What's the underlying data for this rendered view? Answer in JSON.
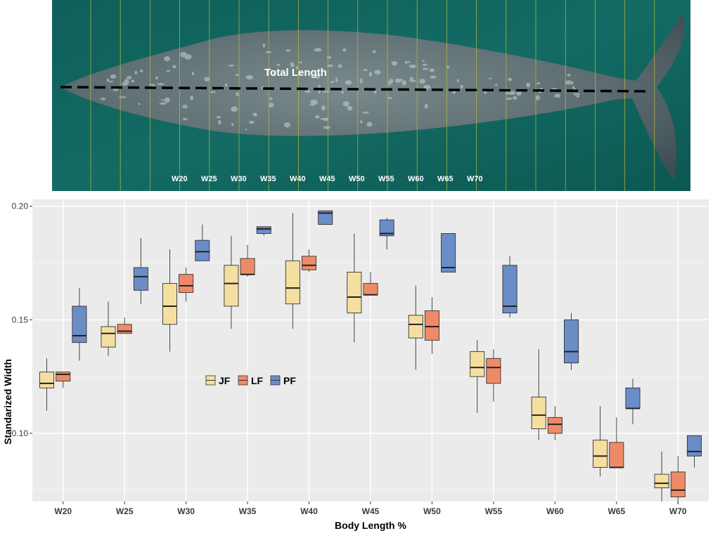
{
  "photo": {
    "title": "Total Length",
    "labels": [
      "W20",
      "W25",
      "W30",
      "W35",
      "W40",
      "W45",
      "W50",
      "W55",
      "W60",
      "W65",
      "W70"
    ]
  },
  "chart_data": {
    "type": "box",
    "xlabel": "Body Length %",
    "ylabel": "Standarized Width",
    "categories": [
      "W20",
      "W25",
      "W30",
      "W35",
      "W40",
      "W45",
      "W50",
      "W55",
      "W60",
      "W65",
      "W70"
    ],
    "ylim": [
      0.07,
      0.203
    ],
    "yticks": [
      "0.10",
      "0.15",
      "0.20"
    ],
    "grid": true,
    "legend_position": "inside-left",
    "series": [
      {
        "name": "JF",
        "color": "#F5DFA0",
        "boxes": [
          {
            "min": 0.11,
            "q1": 0.12,
            "median": 0.122,
            "q3": 0.127,
            "max": 0.133
          },
          {
            "min": 0.134,
            "q1": 0.138,
            "median": 0.144,
            "q3": 0.147,
            "max": 0.158
          },
          {
            "min": 0.136,
            "q1": 0.148,
            "median": 0.156,
            "q3": 0.166,
            "max": 0.181
          },
          {
            "min": 0.146,
            "q1": 0.156,
            "median": 0.166,
            "q3": 0.174,
            "max": 0.187
          },
          {
            "min": 0.146,
            "q1": 0.157,
            "median": 0.164,
            "q3": 0.176,
            "max": 0.197
          },
          {
            "min": 0.14,
            "q1": 0.153,
            "median": 0.16,
            "q3": 0.171,
            "max": 0.188
          },
          {
            "min": 0.128,
            "q1": 0.142,
            "median": 0.148,
            "q3": 0.152,
            "max": 0.165
          },
          {
            "min": 0.109,
            "q1": 0.125,
            "median": 0.129,
            "q3": 0.136,
            "max": 0.141
          },
          {
            "min": 0.097,
            "q1": 0.102,
            "median": 0.108,
            "q3": 0.116,
            "max": 0.137
          },
          {
            "min": 0.081,
            "q1": 0.085,
            "median": 0.09,
            "q3": 0.097,
            "max": 0.112
          },
          {
            "min": 0.07,
            "q1": 0.076,
            "median": 0.078,
            "q3": 0.082,
            "max": 0.092
          }
        ]
      },
      {
        "name": "LF",
        "color": "#EF8A68",
        "boxes": [
          {
            "min": 0.12,
            "q1": 0.123,
            "median": 0.126,
            "q3": 0.127,
            "max": 0.127
          },
          {
            "min": 0.144,
            "q1": 0.144,
            "median": 0.145,
            "q3": 0.148,
            "max": 0.151
          },
          {
            "min": 0.158,
            "q1": 0.162,
            "median": 0.165,
            "q3": 0.17,
            "max": 0.173
          },
          {
            "min": 0.169,
            "q1": 0.17,
            "median": 0.17,
            "q3": 0.177,
            "max": 0.183
          },
          {
            "min": 0.171,
            "q1": 0.172,
            "median": 0.174,
            "q3": 0.178,
            "max": 0.181
          },
          {
            "min": 0.161,
            "q1": 0.161,
            "median": 0.161,
            "q3": 0.166,
            "max": 0.171
          },
          {
            "min": 0.135,
            "q1": 0.141,
            "median": 0.147,
            "q3": 0.154,
            "max": 0.16
          },
          {
            "min": 0.114,
            "q1": 0.122,
            "median": 0.129,
            "q3": 0.133,
            "max": 0.137
          },
          {
            "min": 0.097,
            "q1": 0.1,
            "median": 0.104,
            "q3": 0.107,
            "max": 0.112
          },
          {
            "min": 0.085,
            "q1": 0.085,
            "median": 0.085,
            "q3": 0.096,
            "max": 0.107
          },
          {
            "min": 0.069,
            "q1": 0.072,
            "median": 0.075,
            "q3": 0.083,
            "max": 0.09
          }
        ]
      },
      {
        "name": "PF",
        "color": "#6A8DC8",
        "boxes": [
          {
            "min": 0.132,
            "q1": 0.14,
            "median": 0.143,
            "q3": 0.156,
            "max": 0.164
          },
          {
            "min": 0.157,
            "q1": 0.163,
            "median": 0.169,
            "q3": 0.173,
            "max": 0.186
          },
          {
            "min": 0.176,
            "q1": 0.176,
            "median": 0.18,
            "q3": 0.185,
            "max": 0.192
          },
          {
            "min": 0.187,
            "q1": 0.188,
            "median": 0.19,
            "q3": 0.191,
            "max": 0.191
          },
          {
            "min": 0.192,
            "q1": 0.192,
            "median": 0.197,
            "q3": 0.198,
            "max": 0.198
          },
          {
            "min": 0.181,
            "q1": 0.187,
            "median": 0.188,
            "q3": 0.194,
            "max": 0.195
          },
          {
            "min": 0.171,
            "q1": 0.171,
            "median": 0.173,
            "q3": 0.188,
            "max": 0.188
          },
          {
            "min": 0.151,
            "q1": 0.153,
            "median": 0.156,
            "q3": 0.174,
            "max": 0.178
          },
          {
            "min": 0.128,
            "q1": 0.131,
            "median": 0.136,
            "q3": 0.15,
            "max": 0.153
          },
          {
            "min": 0.104,
            "q1": 0.111,
            "median": 0.111,
            "q3": 0.12,
            "max": 0.124
          },
          {
            "min": 0.085,
            "q1": 0.09,
            "median": 0.092,
            "q3": 0.099,
            "max": 0.099
          }
        ]
      }
    ]
  }
}
